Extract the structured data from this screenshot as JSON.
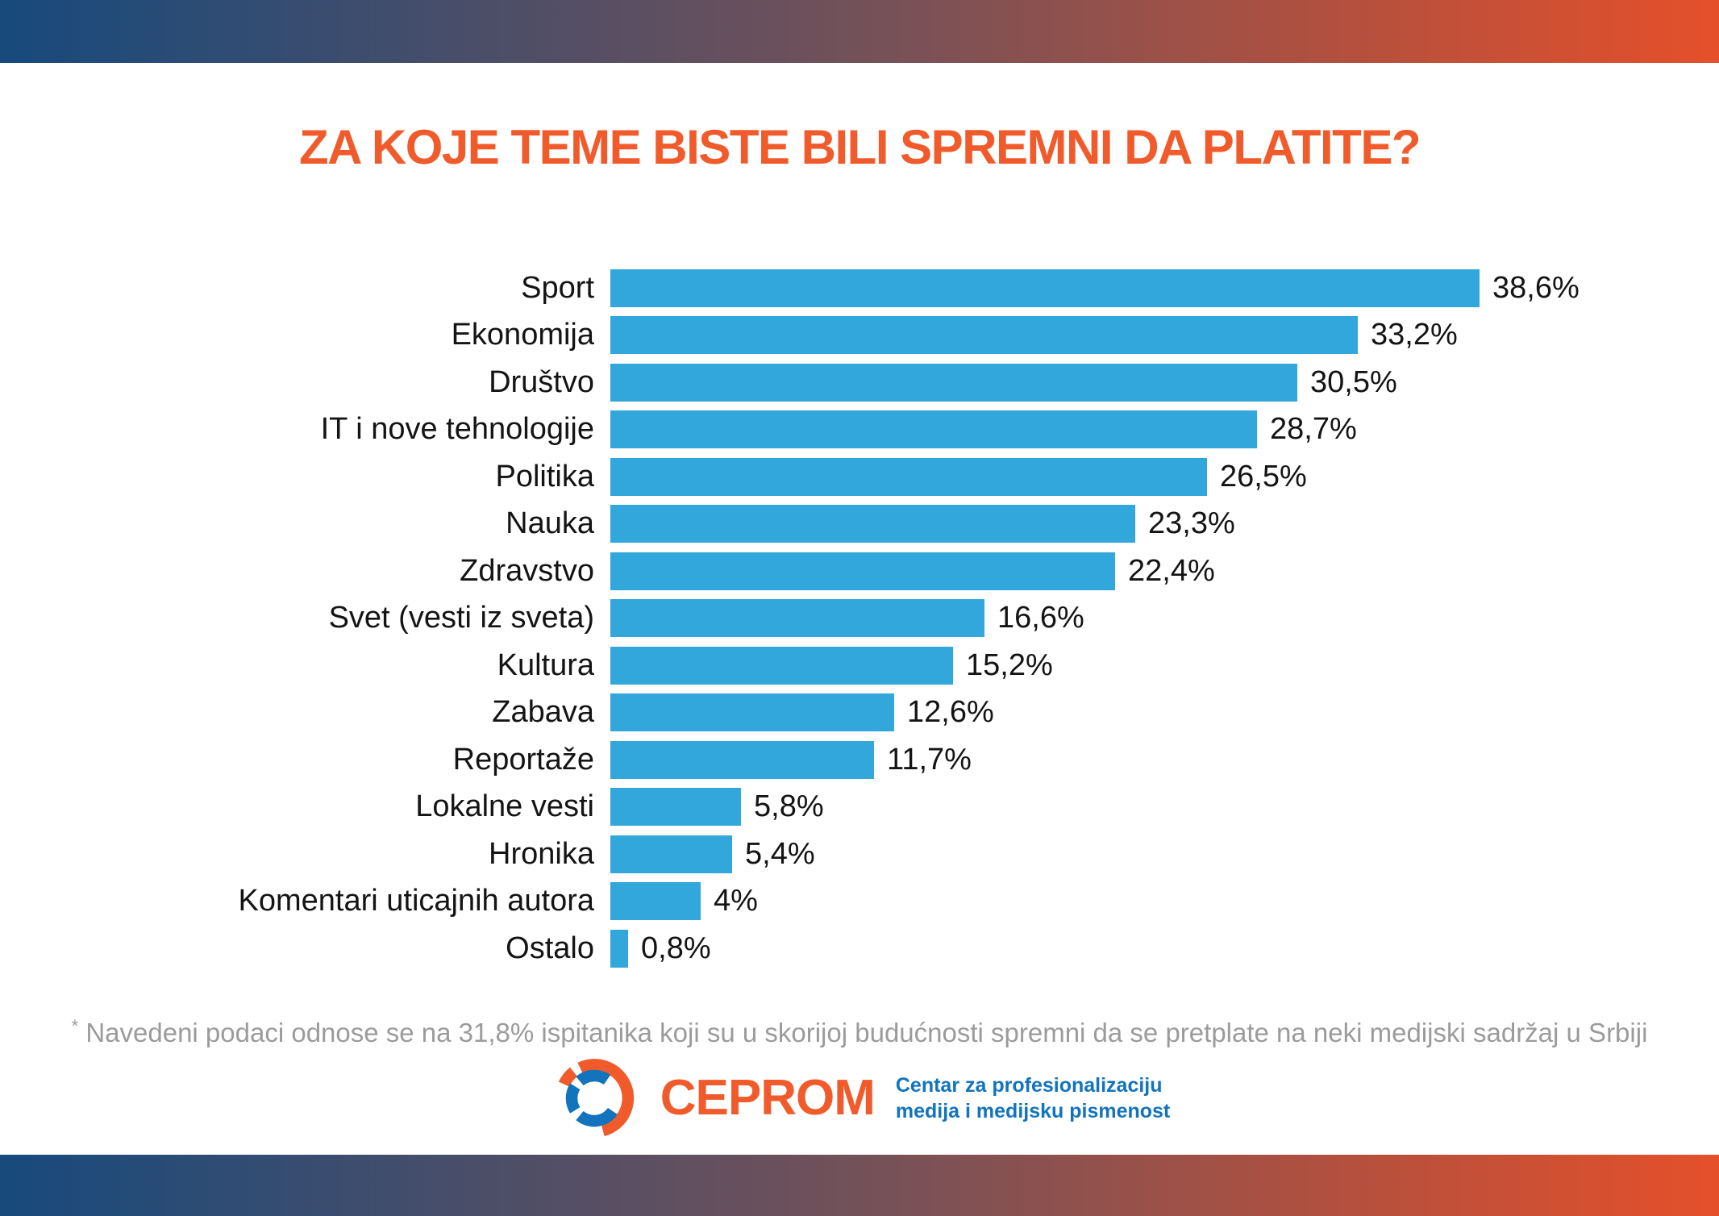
{
  "chart_data": {
    "type": "bar",
    "orientation": "horizontal",
    "title": "ZA KOJE TEME BISTE BILI SPREMNI DA PLATITE?",
    "categories": [
      "Sport",
      "Ekonomija",
      "Društvo",
      "IT i nove tehnologije",
      "Politika",
      "Nauka",
      "Zdravstvo",
      "Svet (vesti iz sveta)",
      "Kultura",
      "Zabava",
      "Reportaže",
      "Lokalne vesti",
      "Hronika",
      "Komentari uticajnih autora",
      "Ostalo"
    ],
    "values": [
      38.6,
      33.2,
      30.5,
      28.7,
      26.5,
      23.3,
      22.4,
      16.6,
      15.2,
      12.6,
      11.7,
      5.8,
      5.4,
      4,
      0.8
    ],
    "value_labels": [
      "38,6%",
      "33,2%",
      "30,5%",
      "28,7%",
      "26,5%",
      "23,3%",
      "22,4%",
      "16,6%",
      "15,2%",
      "12,6%",
      "11,7%",
      "5,8%",
      "5,4%",
      "4%",
      "0,8%"
    ],
    "xlim": [
      0,
      40
    ],
    "grid": false,
    "legend": false,
    "bar_color": "#32A7DB"
  },
  "footnote": {
    "marker": "*",
    "text": "Navedeni podaci odnose se na 31,8% ispitanika koji su u skorijoj budućnosti spremni da se pretplate na neki medijski sadržaj u Srbiji"
  },
  "logo": {
    "wordmark": "CEPROM",
    "tagline_line1": "Centar za profesionalizaciju",
    "tagline_line2": "medija i medijsku pismenost"
  },
  "colors": {
    "accent_orange": "#F15B2B",
    "bar_blue": "#32A7DB",
    "gradient_left": "#174A7D",
    "gradient_right": "#E5502A",
    "logo_blue": "#1274BC",
    "footnote_gray": "#9B9B9B"
  }
}
